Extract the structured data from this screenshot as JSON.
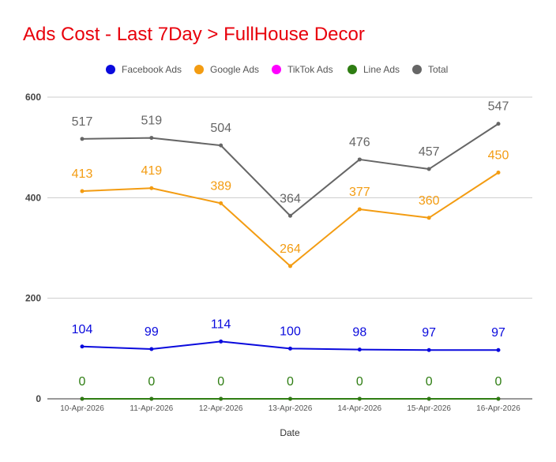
{
  "chart_data": {
    "type": "line",
    "title": "Ads Cost - Last 7Day > FullHouse Decor",
    "xlabel": "Date",
    "ylabel": "",
    "ylim": [
      0,
      600
    ],
    "yticks": [
      0,
      200,
      400,
      600
    ],
    "grid": true,
    "legend_position": "top",
    "categories": [
      "10-Apr-2026",
      "11-Apr-2026",
      "12-Apr-2026",
      "13-Apr-2026",
      "14-Apr-2026",
      "15-Apr-2026",
      "16-Apr-2026"
    ],
    "series": [
      {
        "name": "Facebook Ads",
        "color": "#0a0add",
        "values": [
          104,
          99,
          114,
          100,
          98,
          97,
          97
        ],
        "labels_shown": true
      },
      {
        "name": "Google Ads",
        "color": "#f39c12",
        "values": [
          413,
          419,
          389,
          264,
          377,
          360,
          450
        ],
        "labels_shown": true
      },
      {
        "name": "TikTok Ads",
        "color": "#ff00ff",
        "values": [
          0,
          0,
          0,
          0,
          0,
          0,
          0
        ],
        "labels_shown": false
      },
      {
        "name": "Line Ads",
        "color": "#2e7d12",
        "values": [
          0,
          0,
          0,
          0,
          0,
          0,
          0
        ],
        "labels_shown": true
      },
      {
        "name": "Total",
        "color": "#666666",
        "values": [
          517,
          519,
          504,
          364,
          476,
          457,
          547
        ],
        "labels_shown": true
      }
    ]
  }
}
